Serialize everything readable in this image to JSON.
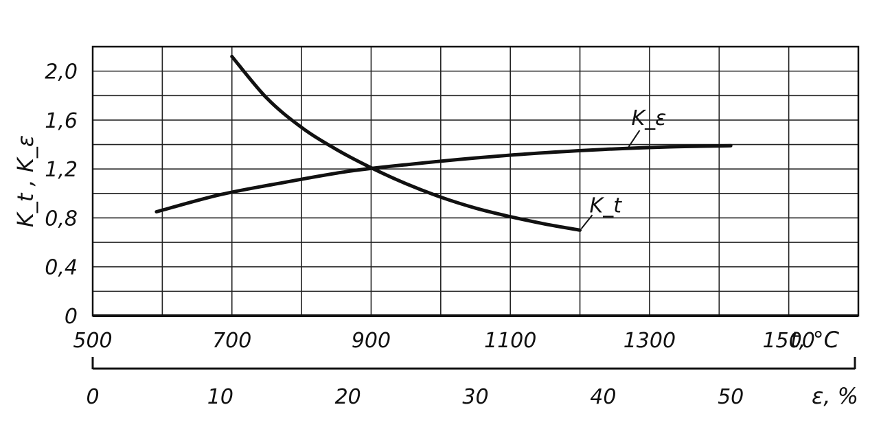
{
  "chart_data": {
    "type": "line",
    "ylabel": "K_t ,  K_ε",
    "x_primary": {
      "label": "t, °C",
      "range": [
        500,
        1600
      ],
      "ticks": [
        500,
        700,
        900,
        1100,
        1300,
        1500
      ],
      "tick_labels": [
        "500",
        "700",
        "900",
        "1100",
        "1300",
        "1500"
      ]
    },
    "x_secondary": {
      "label": "ε, %",
      "range": [
        0,
        60
      ],
      "ticks": [
        0,
        10,
        20,
        30,
        40,
        50
      ],
      "tick_labels": [
        "0",
        "10",
        "20",
        "30",
        "40",
        "50"
      ]
    },
    "y": {
      "range": [
        0,
        2.2
      ],
      "ticks": [
        0,
        0.4,
        0.8,
        1.2,
        1.6,
        2.0
      ],
      "tick_labels": [
        "0",
        "0,4",
        "0,8",
        "1,2",
        "1,6",
        "2,0"
      ]
    },
    "grid": true,
    "series": [
      {
        "name": "K_t",
        "axis": "t",
        "x": [
          700,
          750,
          800,
          850,
          900,
          950,
          1000,
          1050,
          1100,
          1150,
          1200
        ],
        "y": [
          2.12,
          1.78,
          1.54,
          1.36,
          1.21,
          1.08,
          0.97,
          0.88,
          0.81,
          0.75,
          0.7
        ]
      },
      {
        "name": "K_ε",
        "axis": "ε",
        "x": [
          5,
          10,
          15,
          20,
          25,
          30,
          35,
          40,
          45,
          50
        ],
        "y": [
          0.85,
          0.99,
          1.09,
          1.18,
          1.24,
          1.29,
          1.33,
          1.36,
          1.38,
          1.39
        ]
      }
    ]
  }
}
